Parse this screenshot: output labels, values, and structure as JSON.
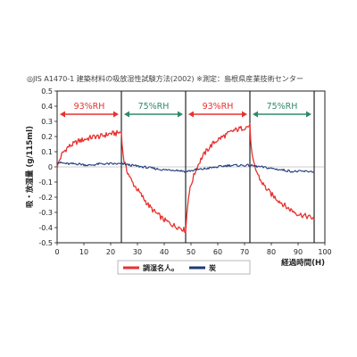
{
  "header_note": "◎JIS A1470-1 建築材料の吸放湿性試験方法(2002) ※測定：島根県産業技術センター",
  "chart_data": {
    "type": "line",
    "title": "",
    "xlabel": "経過時間(H)",
    "ylabel": "吸・放湿量 (g/115ml)",
    "xlim": [
      0,
      100
    ],
    "ylim": [
      -0.5,
      0.5
    ],
    "x_ticks": [
      0,
      10,
      20,
      30,
      40,
      50,
      60,
      70,
      80,
      90,
      100
    ],
    "y_ticks": [
      0.5,
      0.4,
      0.3,
      0.2,
      0.1,
      0,
      -0.1,
      -0.2,
      -0.3,
      -0.4,
      -0.5
    ],
    "grid": false,
    "legend_position": "bottom",
    "phase_boundaries": [
      24,
      48,
      72,
      96
    ],
    "phases": [
      {
        "label": "93%RH",
        "start": 0,
        "end": 24,
        "color": "#e8312f"
      },
      {
        "label": "75%RH",
        "start": 24,
        "end": 48,
        "color": "#2e8b68"
      },
      {
        "label": "93%RH",
        "start": 48,
        "end": 72,
        "color": "#e8312f"
      },
      {
        "label": "75%RH",
        "start": 72,
        "end": 96,
        "color": "#2e8b68"
      }
    ],
    "series": [
      {
        "name": "調湿名人。",
        "color": "#e8312f",
        "x": [
          0,
          1,
          2,
          3,
          4,
          5,
          6,
          7,
          8,
          10,
          12,
          14,
          16,
          18,
          20,
          22,
          24,
          24.5,
          25,
          26,
          27,
          28,
          30,
          32,
          34,
          36,
          38,
          40,
          42,
          44,
          46,
          47,
          48,
          48.5,
          49,
          50,
          51,
          52,
          54,
          56,
          58,
          60,
          62,
          64,
          66,
          68,
          70,
          72,
          72.5,
          73,
          74,
          75,
          76,
          78,
          80,
          82,
          84,
          86,
          88,
          90,
          92,
          94,
          96
        ],
        "values": [
          0.0,
          0.05,
          0.09,
          0.11,
          0.13,
          0.14,
          0.15,
          0.16,
          0.17,
          0.18,
          0.19,
          0.2,
          0.2,
          0.21,
          0.22,
          0.22,
          0.23,
          0.1,
          0.04,
          -0.02,
          -0.06,
          -0.1,
          -0.15,
          -0.2,
          -0.25,
          -0.29,
          -0.32,
          -0.35,
          -0.37,
          -0.39,
          -0.4,
          -0.41,
          -0.42,
          -0.3,
          -0.2,
          -0.12,
          -0.06,
          -0.01,
          0.06,
          0.11,
          0.15,
          0.18,
          0.2,
          0.22,
          0.24,
          0.25,
          0.26,
          0.27,
          0.12,
          0.05,
          -0.01,
          -0.05,
          -0.09,
          -0.14,
          -0.18,
          -0.21,
          -0.24,
          -0.27,
          -0.29,
          -0.31,
          -0.32,
          -0.33,
          -0.34
        ]
      },
      {
        "name": "炭",
        "color": "#1f3a7a",
        "x": [
          0,
          4,
          8,
          12,
          16,
          20,
          24,
          28,
          32,
          36,
          40,
          44,
          48,
          52,
          56,
          60,
          64,
          68,
          72,
          76,
          80,
          84,
          88,
          92,
          96
        ],
        "values": [
          0.03,
          0.02,
          0.02,
          0.01,
          0.02,
          0.02,
          0.02,
          0.01,
          0.0,
          -0.01,
          -0.02,
          -0.02,
          -0.03,
          -0.02,
          -0.01,
          0.0,
          0.01,
          0.01,
          0.01,
          0.0,
          -0.01,
          -0.02,
          -0.03,
          -0.03,
          -0.03
        ]
      }
    ]
  }
}
